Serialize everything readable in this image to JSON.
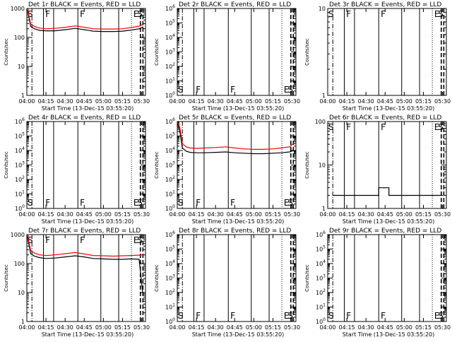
{
  "page": {
    "x_axis_title": "Start Time (13-Dec-15 03:55:20)",
    "y_axis_title": "Counts/sec",
    "x_tick_labels": [
      "04:00",
      "04:15",
      "04:30",
      "04:45",
      "05:00",
      "05:15",
      "05:30"
    ],
    "marker_letters": {
      "s": "S",
      "f": "F",
      "e": "E"
    },
    "colors": {
      "events": "#000000",
      "lld": "#ff0000",
      "axes": "#000000",
      "background": "#ffffff"
    }
  },
  "chart_data": [
    {
      "id": "det-1r",
      "type": "line",
      "title": "Det 1r BLACK = Events, RED = LLD",
      "ylog": true,
      "ylim": [
        1,
        1000
      ],
      "y_tick_labels": [
        "1",
        "10",
        "100",
        "1000"
      ],
      "series": [
        {
          "name": "Events",
          "color": "#000000",
          "x": [
            "04:00",
            "04:01",
            "04:03",
            "04:06",
            "04:10",
            "04:15",
            "04:22",
            "04:30",
            "04:38",
            "04:45",
            "04:52",
            "05:00",
            "05:08",
            "05:15",
            "05:22",
            "05:28",
            "05:31"
          ],
          "y": [
            1000,
            700,
            240,
            200,
            175,
            170,
            170,
            185,
            205,
            185,
            165,
            160,
            160,
            165,
            180,
            200,
            230
          ]
        },
        {
          "name": "LLD",
          "color": "#ff0000",
          "x": [
            "04:00",
            "04:01",
            "04:03",
            "04:06",
            "04:10",
            "04:15",
            "04:22",
            "04:30",
            "04:38",
            "04:45",
            "04:52",
            "05:00",
            "05:08",
            "05:15",
            "05:22",
            "05:28",
            "05:31"
          ],
          "y": [
            1000,
            800,
            290,
            240,
            210,
            200,
            205,
            225,
            250,
            225,
            200,
            195,
            195,
            200,
            220,
            245,
            280
          ]
        }
      ]
    },
    {
      "id": "det-2r",
      "type": "line",
      "title": "Det 2r BLACK = Events, RED = LLD",
      "ylog": true,
      "ylim": [
        1,
        1000000
      ],
      "y_tick_labels": [
        "10^0",
        "10^1",
        "10^2",
        "10^3",
        "10^4",
        "10^5",
        "10^6"
      ],
      "series": []
    },
    {
      "id": "det-3r",
      "type": "line",
      "title": "Det 3r BLACK = Events, RED = LLD",
      "ylog": true,
      "ylim": [
        1,
        10
      ],
      "y_tick_labels": [
        "1",
        "10"
      ],
      "series": []
    },
    {
      "id": "det-4r",
      "type": "line",
      "title": "Det 4r BLACK = Events, RED = LLD",
      "ylog": true,
      "ylim": [
        1,
        1000000
      ],
      "y_tick_labels": [
        "10^0",
        "10^1",
        "10^2",
        "10^3",
        "10^4",
        "10^5",
        "10^6"
      ],
      "series": []
    },
    {
      "id": "det-5r",
      "type": "line",
      "title": "Det 5r BLACK = Events, RED = LLD",
      "ylog": true,
      "ylim": [
        1,
        1000000
      ],
      "y_tick_labels": [
        "10^0",
        "10^1",
        "10^2",
        "10^3",
        "10^4",
        "10^5",
        "10^6"
      ],
      "series": [
        {
          "name": "Events",
          "color": "#000000",
          "x": [
            "04:00",
            "04:02",
            "04:04",
            "04:07",
            "04:10",
            "04:15",
            "04:22",
            "04:30",
            "04:38",
            "04:45",
            "04:52",
            "05:00",
            "05:08",
            "05:15",
            "05:22",
            "05:28",
            "05:31"
          ],
          "y": [
            1000000,
            200000,
            15000,
            9000,
            7500,
            7000,
            7000,
            7500,
            8000,
            7000,
            6500,
            6000,
            6000,
            6500,
            7000,
            8000,
            10000
          ]
        },
        {
          "name": "LLD",
          "color": "#ff0000",
          "x": [
            "04:00",
            "04:02",
            "04:04",
            "04:07",
            "04:10",
            "04:15",
            "04:22",
            "04:30",
            "04:38",
            "04:45",
            "04:52",
            "05:00",
            "05:08",
            "05:15",
            "05:22",
            "05:28",
            "05:31"
          ],
          "y": [
            1000000,
            400000,
            30000,
            18000,
            15000,
            14000,
            15000,
            16000,
            18000,
            15000,
            13000,
            12000,
            12000,
            13000,
            15000,
            18000,
            30000
          ]
        }
      ]
    },
    {
      "id": "det-6r",
      "type": "line",
      "title": "Det 6r BLACK = Events, RED = LLD",
      "ylog": true,
      "ylim": [
        1,
        100
      ],
      "y_tick_labels": [
        "1",
        "10",
        "100"
      ],
      "series": [
        {
          "name": "Events",
          "color": "#000000",
          "x": [
            "04:04",
            "04:08",
            "04:12",
            "04:16",
            "04:20",
            "04:24",
            "04:28",
            "04:32",
            "04:36",
            "04:40",
            "04:44",
            "04:48",
            "04:52",
            "04:56",
            "05:00",
            "05:04",
            "05:08",
            "05:12",
            "05:16",
            "05:20",
            "05:24",
            "05:28"
          ],
          "y": [
            2,
            2,
            2,
            2,
            2,
            2,
            2,
            2,
            2,
            3,
            3,
            2,
            2,
            2,
            2,
            2,
            2,
            2,
            2,
            2,
            2,
            2
          ]
        }
      ]
    },
    {
      "id": "det-7r",
      "type": "line",
      "title": "Det 7r BLACK = Events, RED = LLD",
      "ylog": true,
      "ylim": [
        1,
        1000
      ],
      "y_tick_labels": [
        "1",
        "10",
        "100",
        "1000"
      ],
      "series": [
        {
          "name": "Events",
          "color": "#000000",
          "x": [
            "04:00",
            "04:01",
            "04:03",
            "04:06",
            "04:10",
            "04:15",
            "04:22",
            "04:30",
            "04:38",
            "04:45",
            "04:52",
            "05:00",
            "05:08",
            "05:15",
            "05:22",
            "05:28",
            "05:31"
          ],
          "y": [
            1000,
            650,
            220,
            180,
            160,
            150,
            155,
            170,
            185,
            170,
            150,
            145,
            140,
            140,
            145,
            140,
            8
          ]
        },
        {
          "name": "LLD",
          "color": "#ff0000",
          "x": [
            "04:00",
            "04:01",
            "04:03",
            "04:06",
            "04:10",
            "04:15",
            "04:22",
            "04:30",
            "04:38",
            "04:45",
            "04:52",
            "05:00",
            "05:08",
            "05:15",
            "05:22",
            "05:28",
            "05:31"
          ],
          "y": [
            1000,
            800,
            280,
            230,
            200,
            190,
            200,
            220,
            240,
            215,
            190,
            185,
            180,
            185,
            190,
            195,
            200
          ]
        }
      ]
    },
    {
      "id": "det-8r",
      "type": "line",
      "title": "Det 8r BLACK = Events, RED = LLD",
      "ylog": true,
      "ylim": [
        1,
        1000000
      ],
      "y_tick_labels": [
        "10^0",
        "10^1",
        "10^2",
        "10^3",
        "10^4",
        "10^5",
        "10^6"
      ],
      "series": []
    },
    {
      "id": "det-9r",
      "type": "line",
      "title": "Det 9r BLACK = Events, RED = LLD",
      "ylog": true,
      "ylim": [
        1,
        1000000
      ],
      "y_tick_labels": [
        "10^0",
        "10^1",
        "10^2",
        "10^3",
        "10^4",
        "10^5",
        "10^6"
      ],
      "series": []
    }
  ],
  "markers": {
    "dash_dot_times": [
      "04:04"
    ],
    "solid_times": [
      "04:13",
      "04:21",
      "04:40",
      "04:58",
      "05:12"
    ],
    "dotted_times": [
      "05:22"
    ],
    "dashed_times": [
      "05:29",
      "05:31"
    ],
    "s_time": "04:00",
    "f_times": [
      "04:14",
      "04:41"
    ],
    "e_time": "05:23",
    "end_s_time": "05:31"
  },
  "x_range": [
    "04:00",
    "05:33"
  ]
}
